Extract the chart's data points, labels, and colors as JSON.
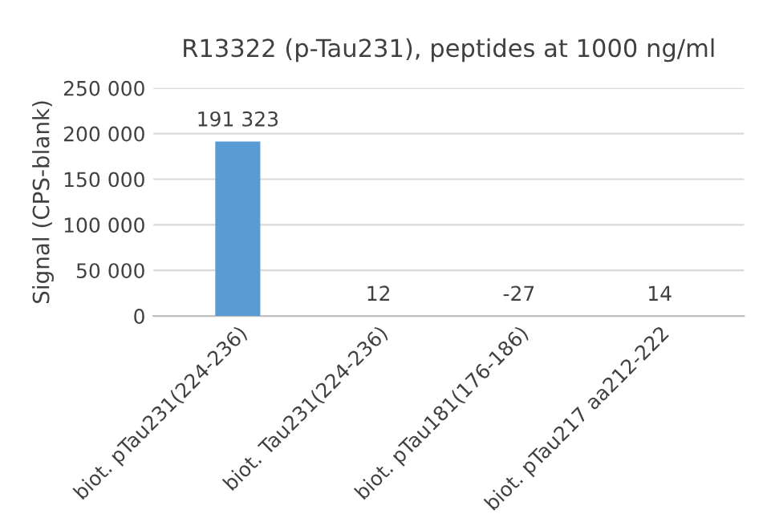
{
  "chart_data": {
    "type": "bar",
    "title": "R13322 (p-Tau231), peptides at 1000 ng/ml",
    "ylabel": "Signal (CPS-blank)",
    "categories": [
      "biot. pTau231(224-236)",
      "biot. Tau231(224-236)",
      "biot. pTau181(176-186)",
      "biot. pTau217 aa212-222"
    ],
    "values": [
      191323,
      12,
      -27,
      14
    ],
    "color": "#5b9bd5",
    "ylim": [
      -30,
      250000
    ],
    "yticks": [
      {
        "value": 0,
        "label": "0"
      },
      {
        "value": 50000,
        "label": "50 000"
      },
      {
        "value": 100000,
        "label": "100 000"
      },
      {
        "value": 150000,
        "label": "150 000"
      },
      {
        "value": 200000,
        "label": "200 000"
      },
      {
        "value": 250000,
        "label": "250 000"
      }
    ],
    "value_labels": [
      "191 323",
      "12",
      "-27",
      "14"
    ],
    "grid": "y"
  }
}
